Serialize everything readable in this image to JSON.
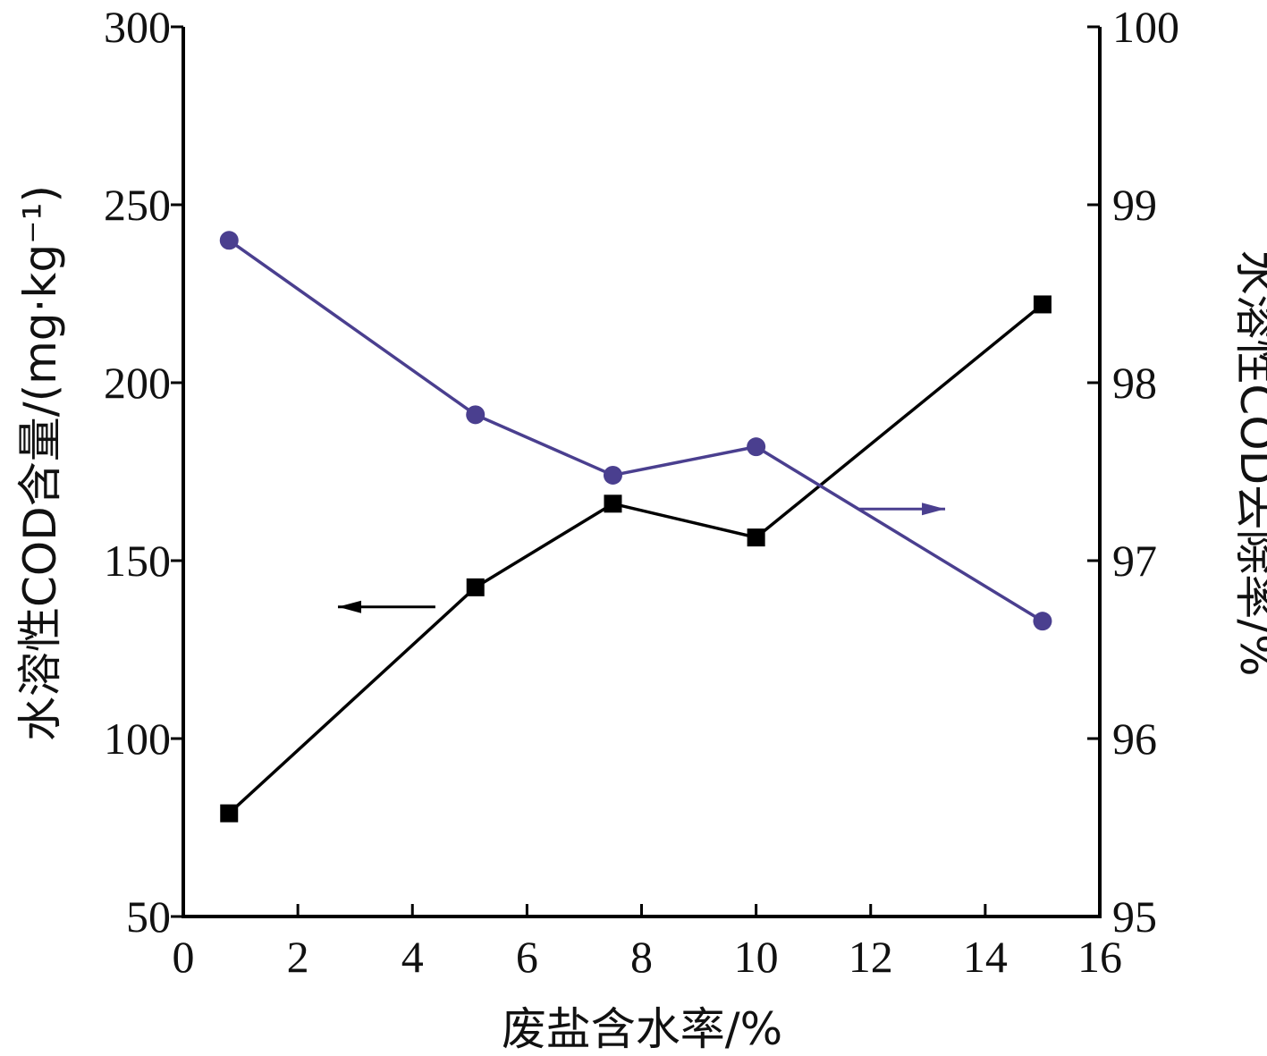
{
  "chart_data": {
    "type": "line",
    "x": [
      0.8,
      5.1,
      7.5,
      10,
      15
    ],
    "xlabel": "废盐含水率/%",
    "xlim": [
      0,
      16
    ],
    "xticks": [
      0,
      2,
      4,
      6,
      8,
      10,
      12,
      14,
      16
    ],
    "y_left": {
      "label": "水溶性COD含量/(mg·kg⁻¹)",
      "lim": [
        50,
        300
      ],
      "ticks": [
        50,
        100,
        150,
        200,
        250,
        300
      ]
    },
    "y_right": {
      "label": "水溶性COD去除率/%",
      "lim": [
        95,
        100
      ],
      "ticks": [
        95,
        96,
        97,
        98,
        99,
        100
      ]
    },
    "series": [
      {
        "axis": "left",
        "marker": "square",
        "color": "#000000",
        "values": [
          79,
          142.5,
          166,
          156.5,
          222
        ]
      },
      {
        "axis": "right",
        "marker": "circle",
        "color": "#4a3f8f",
        "values": [
          98.8,
          97.82,
          97.48,
          97.64,
          96.66
        ]
      }
    ],
    "annotations": [
      {
        "type": "arrow",
        "direction": "left",
        "series": "left",
        "color": "#000000"
      },
      {
        "type": "arrow",
        "direction": "right",
        "series": "right",
        "color": "#4a3f8f"
      }
    ]
  }
}
